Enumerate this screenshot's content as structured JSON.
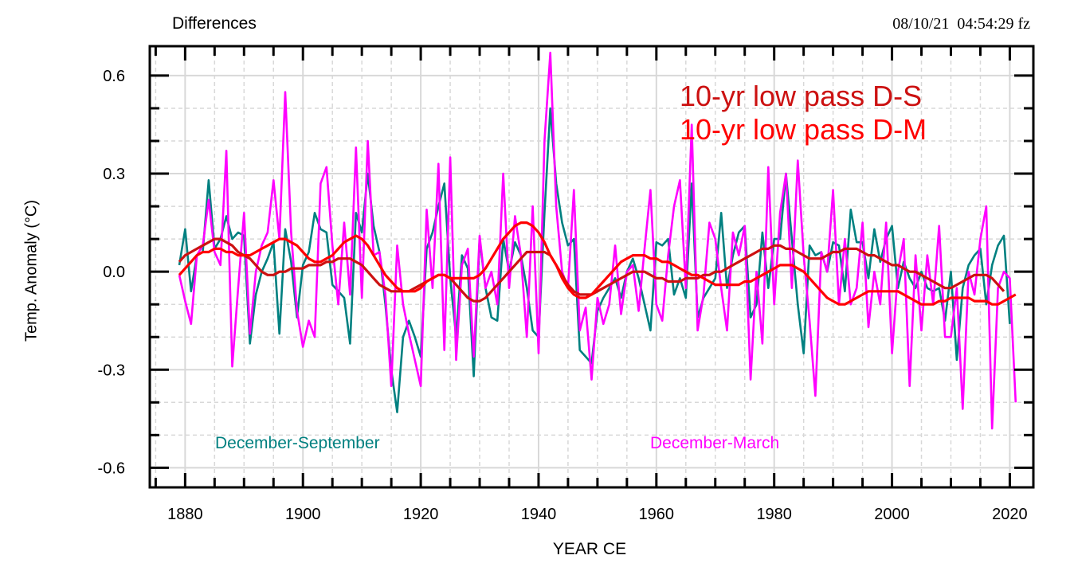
{
  "header": {
    "title": "Differences",
    "timestamp": "08/10/21  04:54:29 fz"
  },
  "chart_data": {
    "type": "line",
    "title": "Differences",
    "xlabel": "YEAR CE",
    "ylabel": "Temp. Anomaly (°C)",
    "xlim": [
      1874,
      2024
    ],
    "ylim": [
      -0.66,
      0.69
    ],
    "x_ticks": [
      1880,
      1900,
      1920,
      1940,
      1960,
      1980,
      2000,
      2020
    ],
    "x_tick_labels": [
      "1880",
      "1900",
      "1920",
      "1940",
      "1960",
      "1980",
      "2000",
      "2020"
    ],
    "y_ticks": [
      0.6,
      0.3,
      0.0,
      -0.3,
      -0.6
    ],
    "y_tick_labels": [
      "0.6",
      "0.3",
      "0.0",
      "-0.3",
      "-0.6"
    ],
    "grid": true,
    "legend": [
      {
        "label": "10-yr low pass D-S",
        "color": "#cc1111",
        "placement": "top-right"
      },
      {
        "label": "10-yr low pass D-M",
        "color": "#ff0000",
        "placement": "top-right"
      }
    ],
    "annotations": [
      {
        "text": "December-September",
        "color": "#008080",
        "placement": "bottom-left"
      },
      {
        "text": "December-March",
        "color": "#ff00ff",
        "placement": "bottom-center"
      }
    ],
    "x_start": 1879,
    "series": [
      {
        "name": "December-September",
        "color": "#008080",
        "values": [
          0.02,
          0.13,
          -0.06,
          0.05,
          0.06,
          0.28,
          0.07,
          0.1,
          0.17,
          0.1,
          0.12,
          0.11,
          -0.22,
          -0.07,
          0.0,
          0.04,
          0.09,
          -0.19,
          0.13,
          0.03,
          -0.14,
          0.02,
          0.06,
          0.18,
          0.13,
          0.12,
          -0.04,
          -0.06,
          -0.08,
          -0.22,
          0.18,
          0.12,
          0.3,
          0.14,
          0.06,
          -0.1,
          -0.3,
          -0.43,
          -0.2,
          -0.15,
          -0.2,
          -0.26,
          0.07,
          0.12,
          0.2,
          0.27,
          -0.02,
          -0.2,
          0.05,
          0.01,
          -0.32,
          0.1,
          -0.05,
          -0.14,
          -0.15,
          0.1,
          0.0,
          0.09,
          0.05,
          -0.05,
          -0.18,
          -0.2,
          0.18,
          0.5,
          0.27,
          0.15,
          0.08,
          0.1,
          -0.24,
          -0.26,
          -0.28,
          -0.12,
          -0.08,
          -0.05,
          -0.02,
          -0.08,
          0.0,
          0.04,
          -0.02,
          -0.1,
          -0.18,
          0.09,
          0.08,
          0.1,
          -0.07,
          -0.02,
          -0.08,
          0.27,
          -0.14,
          -0.08,
          -0.05,
          -0.02,
          0.18,
          -0.05,
          0.05,
          0.12,
          0.14,
          -0.14,
          -0.1,
          0.12,
          -0.05,
          0.1,
          0.1,
          0.3,
          0.1,
          -0.1,
          -0.25,
          0.08,
          0.05,
          0.06,
          0.0,
          0.09,
          0.08,
          -0.06,
          0.19,
          0.09,
          0.09,
          -0.02,
          0.13,
          0.03,
          0.1,
          0.14,
          -0.05,
          0.03,
          -0.02,
          -0.05,
          0.0,
          -0.05,
          -0.06,
          -0.05,
          -0.15,
          0.0,
          -0.27,
          -0.05,
          0.02,
          0.05,
          0.07,
          -0.1,
          0.02,
          0.08,
          0.11,
          -0.16
        ]
      },
      {
        "name": "December-March",
        "color": "#ff00ff",
        "values": [
          -0.01,
          -0.09,
          -0.16,
          0.05,
          0.08,
          0.22,
          0.06,
          0.02,
          0.37,
          -0.29,
          -0.05,
          0.18,
          -0.19,
          0.0,
          0.08,
          0.12,
          0.28,
          0.1,
          0.55,
          0.12,
          -0.12,
          -0.23,
          -0.15,
          -0.2,
          0.27,
          0.32,
          0.08,
          -0.1,
          0.15,
          -0.07,
          0.38,
          -0.08,
          0.4,
          0.05,
          0.06,
          -0.07,
          -0.35,
          0.08,
          -0.1,
          -0.19,
          -0.27,
          -0.35,
          0.19,
          -0.05,
          0.33,
          -0.24,
          0.35,
          -0.27,
          0.02,
          0.07,
          -0.26,
          0.11,
          -0.05,
          0.0,
          -0.1,
          0.3,
          -0.05,
          0.17,
          0.05,
          -0.2,
          0.2,
          -0.25,
          0.4,
          0.67,
          0.2,
          0.0,
          -0.05,
          0.25,
          -0.18,
          -0.11,
          -0.33,
          -0.08,
          -0.16,
          -0.1,
          0.08,
          -0.13,
          0.0,
          0.02,
          -0.12,
          0.07,
          0.25,
          -0.1,
          -0.15,
          0.05,
          0.2,
          0.28,
          -0.05,
          0.45,
          -0.18,
          -0.07,
          0.15,
          0.1,
          -0.05,
          -0.18,
          0.12,
          0.05,
          0.14,
          -0.33,
          0.0,
          -0.22,
          0.32,
          -0.1,
          0.18,
          0.3,
          -0.05,
          0.34,
          0.05,
          -0.15,
          -0.38,
          0.06,
          0.0,
          0.25,
          -0.1,
          0.1,
          -0.1,
          -0.05,
          0.15,
          -0.17,
          0.0,
          -0.1,
          0.15,
          -0.25,
          0.0,
          0.1,
          -0.35,
          0.05,
          -0.18,
          0.05,
          -0.1,
          0.14,
          -0.2,
          -0.2,
          -0.05,
          -0.42,
          0.0,
          -0.07,
          0.1,
          0.2,
          -0.48,
          -0.05,
          0.0,
          -0.02,
          -0.4
        ]
      },
      {
        "name": "10-yr low pass D-S",
        "color": "#cc1111",
        "values": [
          0.03,
          0.05,
          0.06,
          0.07,
          0.08,
          0.09,
          0.1,
          0.1,
          0.09,
          0.08,
          0.06,
          0.05,
          0.04,
          0.02,
          0.0,
          -0.01,
          -0.01,
          0.0,
          0.0,
          0.01,
          0.01,
          0.01,
          0.02,
          0.02,
          0.02,
          0.03,
          0.03,
          0.04,
          0.04,
          0.04,
          0.03,
          0.02,
          0.0,
          -0.02,
          -0.04,
          -0.05,
          -0.06,
          -0.06,
          -0.06,
          -0.06,
          -0.05,
          -0.04,
          -0.03,
          -0.02,
          -0.01,
          -0.01,
          -0.02,
          -0.04,
          -0.06,
          -0.08,
          -0.09,
          -0.09,
          -0.08,
          -0.06,
          -0.04,
          -0.02,
          0.0,
          0.02,
          0.04,
          0.06,
          0.06,
          0.06,
          0.06,
          0.05,
          0.02,
          -0.01,
          -0.04,
          -0.06,
          -0.07,
          -0.07,
          -0.07,
          -0.06,
          -0.05,
          -0.04,
          -0.03,
          -0.02,
          -0.01,
          0.0,
          0.0,
          0.0,
          -0.01,
          -0.02,
          -0.02,
          -0.03,
          -0.03,
          -0.03,
          -0.02,
          -0.02,
          -0.02,
          -0.01,
          -0.01,
          0.0,
          0.0,
          0.01,
          0.02,
          0.03,
          0.04,
          0.05,
          0.06,
          0.07,
          0.07,
          0.08,
          0.08,
          0.07,
          0.07,
          0.06,
          0.05,
          0.04,
          0.04,
          0.04,
          0.05,
          0.06,
          0.06,
          0.07,
          0.07,
          0.07,
          0.06,
          0.05,
          0.05,
          0.04,
          0.03,
          0.02,
          0.02,
          0.01,
          0.0,
          0.0,
          -0.01,
          -0.02,
          -0.03,
          -0.04,
          -0.05,
          -0.05,
          -0.04,
          -0.03,
          -0.02,
          -0.01,
          -0.01,
          -0.01,
          -0.02,
          -0.04,
          -0.06
        ]
      },
      {
        "name": "10-yr low pass D-M",
        "color": "#ff0000",
        "values": [
          -0.01,
          0.01,
          0.03,
          0.05,
          0.06,
          0.06,
          0.07,
          0.07,
          0.06,
          0.06,
          0.05,
          0.05,
          0.05,
          0.06,
          0.07,
          0.08,
          0.09,
          0.1,
          0.1,
          0.09,
          0.08,
          0.06,
          0.04,
          0.03,
          0.03,
          0.04,
          0.05,
          0.07,
          0.09,
          0.1,
          0.11,
          0.1,
          0.08,
          0.05,
          0.02,
          -0.01,
          -0.03,
          -0.05,
          -0.06,
          -0.06,
          -0.06,
          -0.05,
          -0.03,
          -0.02,
          -0.01,
          -0.01,
          -0.02,
          -0.02,
          -0.02,
          -0.02,
          -0.02,
          -0.01,
          0.01,
          0.04,
          0.07,
          0.1,
          0.12,
          0.14,
          0.15,
          0.15,
          0.14,
          0.12,
          0.09,
          0.05,
          0.02,
          -0.02,
          -0.05,
          -0.07,
          -0.08,
          -0.08,
          -0.07,
          -0.05,
          -0.03,
          -0.01,
          0.01,
          0.03,
          0.04,
          0.05,
          0.05,
          0.05,
          0.04,
          0.04,
          0.03,
          0.03,
          0.02,
          0.01,
          0.0,
          -0.01,
          -0.01,
          -0.02,
          -0.03,
          -0.04,
          -0.04,
          -0.04,
          -0.04,
          -0.04,
          -0.03,
          -0.03,
          -0.02,
          -0.01,
          0.0,
          0.01,
          0.02,
          0.02,
          0.02,
          0.01,
          0.0,
          -0.02,
          -0.04,
          -0.06,
          -0.08,
          -0.09,
          -0.1,
          -0.1,
          -0.09,
          -0.08,
          -0.07,
          -0.06,
          -0.06,
          -0.06,
          -0.06,
          -0.06,
          -0.06,
          -0.07,
          -0.08,
          -0.09,
          -0.1,
          -0.1,
          -0.1,
          -0.09,
          -0.09,
          -0.08,
          -0.08,
          -0.08,
          -0.08,
          -0.09,
          -0.09,
          -0.09,
          -0.1,
          -0.1,
          -0.09,
          -0.08,
          -0.07
        ]
      }
    ]
  }
}
